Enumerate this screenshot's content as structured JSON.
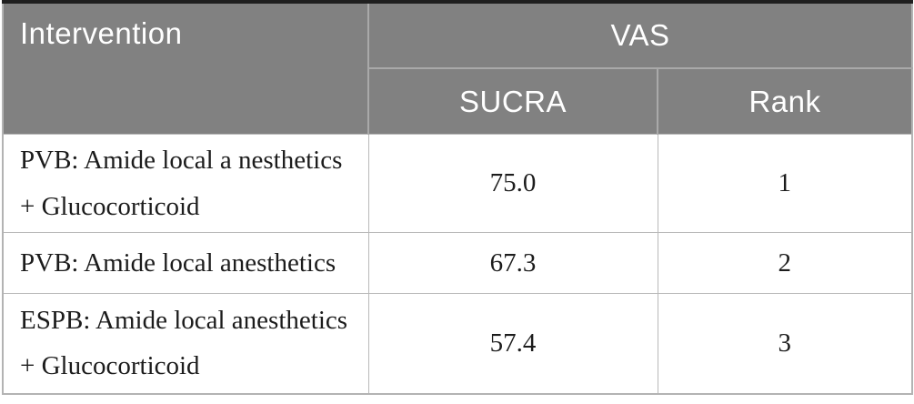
{
  "table": {
    "header": {
      "intervention_label": "Intervention",
      "vas_label": "VAS",
      "sucra_label": "SUCRA",
      "rank_label": "Rank"
    },
    "rows": [
      {
        "intervention": "PVB: Amide local a nesthetics\n+ Glucocorticoid",
        "sucra": "75.0",
        "rank": "1"
      },
      {
        "intervention": "PVB: Amide local anesthetics",
        "sucra": "67.3",
        "rank": "2"
      },
      {
        "intervention": "ESPB: Amide local anesthetics\n+ Glucocorticoid",
        "sucra": "57.4",
        "rank": "3"
      }
    ],
    "colors": {
      "header_background": "#818181",
      "header_text": "#ffffff",
      "header_divider": "#a9a9a9",
      "body_border": "#b9b9b9",
      "top_rule": "#1f1f1f",
      "body_text": "#1c1c1c"
    }
  }
}
